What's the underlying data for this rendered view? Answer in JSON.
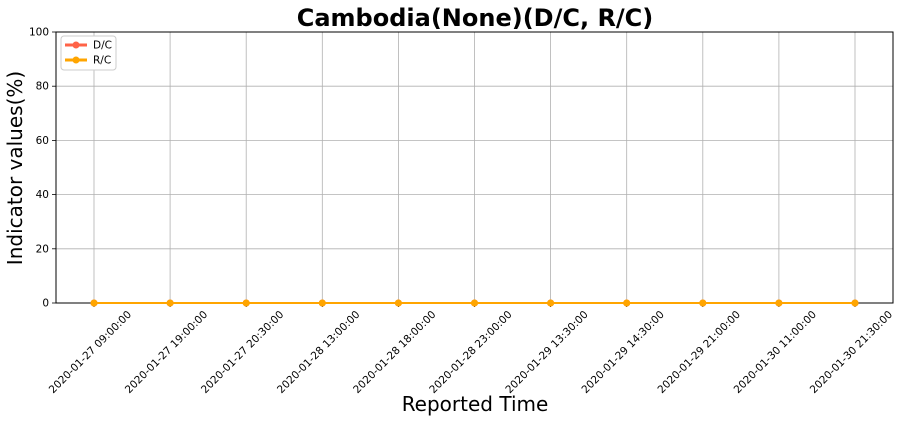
{
  "chart_data": {
    "type": "line",
    "title": "Cambodia(None)(D/C, R/C)",
    "xlabel": "Reported Time",
    "ylabel": "Indicator values(%)",
    "ylim": [
      0,
      100
    ],
    "yticks": [
      "0",
      "20",
      "40",
      "60",
      "80",
      "100"
    ],
    "grid": true,
    "legend_position": "top-left",
    "categories": [
      "2020-01-27 09:00:00",
      "2020-01-27 19:00:00",
      "2020-01-27 20:30:00",
      "2020-01-28 13:00:00",
      "2020-01-28 18:00:00",
      "2020-01-28 23:00:00",
      "2020-01-29 13:30:00",
      "2020-01-29 14:30:00",
      "2020-01-29 21:00:00",
      "2020-01-30 11:00:00",
      "2020-01-30 21:30:00"
    ],
    "series": [
      {
        "name": "D/C",
        "color": "#ff6347",
        "values": [
          0,
          0,
          0,
          0,
          0,
          0,
          0,
          0,
          0,
          0,
          0
        ]
      },
      {
        "name": "R/C",
        "color": "#ffa500",
        "values": [
          0,
          0,
          0,
          0,
          0,
          0,
          0,
          0,
          0,
          0,
          0
        ]
      }
    ]
  }
}
